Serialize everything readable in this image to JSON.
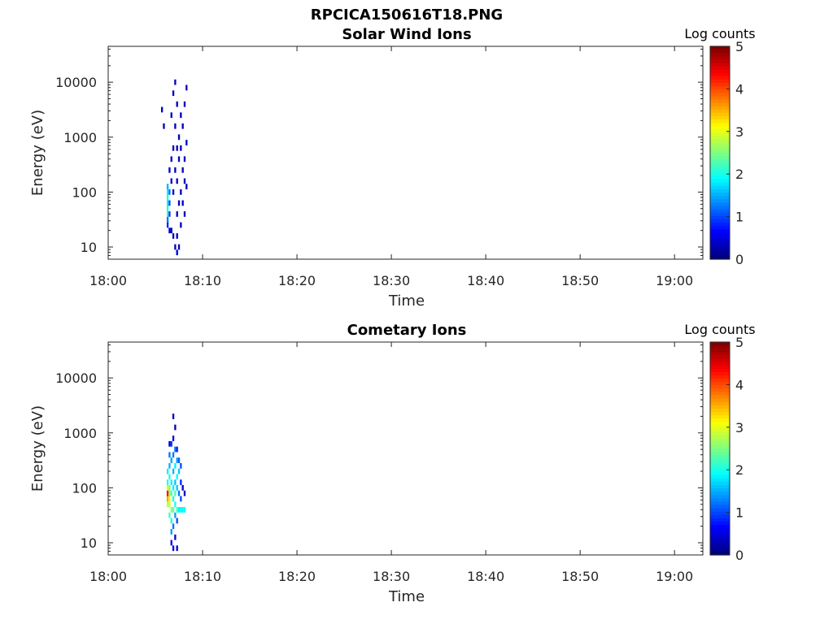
{
  "figure_title": "RPCICA150616T18.PNG",
  "chart_data": [
    {
      "type": "heatmap",
      "title": "Solar Wind Ions",
      "xlabel": "Time",
      "ylabel": "Energy (eV)",
      "x_ticks": [
        "18:00",
        "18:10",
        "18:20",
        "18:30",
        "18:40",
        "18:50",
        "19:00"
      ],
      "x_range_minutes": [
        0,
        63
      ],
      "y_ticks": [
        "10",
        "100",
        "1000",
        "10000"
      ],
      "y_scale": "log",
      "y_range_eV": [
        6,
        45000
      ],
      "colorbar": {
        "label": "Log counts",
        "ticks": [
          "0",
          "1",
          "2",
          "3",
          "4",
          "5"
        ],
        "range": [
          0,
          5
        ],
        "colormap": "jet"
      },
      "cells": [
        {
          "t": 6.2,
          "e": 1.6,
          "c": 2.2
        },
        {
          "t": 6.2,
          "e": 1.7,
          "c": 2.0
        },
        {
          "t": 6.2,
          "e": 1.8,
          "c": 1.8
        },
        {
          "t": 6.2,
          "e": 1.9,
          "c": 2.0
        },
        {
          "t": 6.2,
          "e": 2.0,
          "c": 1.8
        },
        {
          "t": 6.2,
          "e": 2.1,
          "c": 1.5
        },
        {
          "t": 6.2,
          "e": 1.5,
          "c": 1.2
        },
        {
          "t": 6.2,
          "e": 1.4,
          "c": 0.8
        },
        {
          "t": 6.4,
          "e": 2.0,
          "c": 1.2
        },
        {
          "t": 6.4,
          "e": 1.8,
          "c": 1.0
        },
        {
          "t": 6.4,
          "e": 1.6,
          "c": 0.9
        },
        {
          "t": 6.4,
          "e": 2.4,
          "c": 0.4
        },
        {
          "t": 6.4,
          "e": 1.3,
          "c": 0.4
        },
        {
          "t": 6.6,
          "e": 2.2,
          "c": 0.4
        },
        {
          "t": 6.6,
          "e": 2.6,
          "c": 0.4
        },
        {
          "t": 6.6,
          "e": 1.3,
          "c": 0.3
        },
        {
          "t": 6.6,
          "e": 3.4,
          "c": 0.3
        },
        {
          "t": 6.8,
          "e": 2.0,
          "c": 0.4
        },
        {
          "t": 6.8,
          "e": 2.8,
          "c": 0.3
        },
        {
          "t": 6.8,
          "e": 3.8,
          "c": 0.3
        },
        {
          "t": 6.8,
          "e": 1.2,
          "c": 0.3
        },
        {
          "t": 7.0,
          "e": 1.0,
          "c": 0.3
        },
        {
          "t": 7.0,
          "e": 2.4,
          "c": 0.3
        },
        {
          "t": 7.0,
          "e": 3.2,
          "c": 0.3
        },
        {
          "t": 7.0,
          "e": 4.0,
          "c": 0.3
        },
        {
          "t": 7.2,
          "e": 0.9,
          "c": 0.4
        },
        {
          "t": 7.2,
          "e": 1.2,
          "c": 0.3
        },
        {
          "t": 7.2,
          "e": 1.6,
          "c": 0.3
        },
        {
          "t": 7.2,
          "e": 2.2,
          "c": 0.3
        },
        {
          "t": 7.2,
          "e": 2.8,
          "c": 0.3
        },
        {
          "t": 7.2,
          "e": 3.6,
          "c": 0.3
        },
        {
          "t": 7.4,
          "e": 1.0,
          "c": 0.3
        },
        {
          "t": 7.4,
          "e": 1.8,
          "c": 0.3
        },
        {
          "t": 7.4,
          "e": 2.6,
          "c": 0.3
        },
        {
          "t": 7.4,
          "e": 3.0,
          "c": 0.3
        },
        {
          "t": 7.6,
          "e": 1.4,
          "c": 0.3
        },
        {
          "t": 7.6,
          "e": 2.0,
          "c": 0.3
        },
        {
          "t": 7.6,
          "e": 2.8,
          "c": 0.3
        },
        {
          "t": 7.6,
          "e": 3.4,
          "c": 0.3
        },
        {
          "t": 7.8,
          "e": 1.8,
          "c": 0.3
        },
        {
          "t": 7.8,
          "e": 2.4,
          "c": 0.3
        },
        {
          "t": 7.8,
          "e": 3.2,
          "c": 0.3
        },
        {
          "t": 8.0,
          "e": 1.6,
          "c": 0.3
        },
        {
          "t": 8.0,
          "e": 2.2,
          "c": 0.3
        },
        {
          "t": 8.0,
          "e": 2.6,
          "c": 0.3
        },
        {
          "t": 8.0,
          "e": 3.6,
          "c": 0.3
        },
        {
          "t": 8.2,
          "e": 2.1,
          "c": 0.3
        },
        {
          "t": 8.2,
          "e": 2.9,
          "c": 0.3
        },
        {
          "t": 8.2,
          "e": 3.9,
          "c": 0.3
        },
        {
          "t": 5.6,
          "e": 3.5,
          "c": 0.3
        },
        {
          "t": 5.8,
          "e": 3.2,
          "c": 0.3
        }
      ]
    },
    {
      "type": "heatmap",
      "title": "Cometary Ions",
      "xlabel": "Time",
      "ylabel": "Energy (eV)",
      "x_ticks": [
        "18:00",
        "18:10",
        "18:20",
        "18:30",
        "18:40",
        "18:50",
        "19:00"
      ],
      "x_range_minutes": [
        0,
        63
      ],
      "y_ticks": [
        "10",
        "100",
        "1000",
        "10000"
      ],
      "y_scale": "log",
      "y_range_eV": [
        6,
        45000
      ],
      "colorbar": {
        "label": "Log counts",
        "ticks": [
          "0",
          "1",
          "2",
          "3",
          "4",
          "5"
        ],
        "range": [
          0,
          5
        ],
        "colormap": "jet"
      },
      "cells": [
        {
          "t": 6.2,
          "e": 1.8,
          "c": 3.6
        },
        {
          "t": 6.2,
          "e": 1.9,
          "c": 4.4
        },
        {
          "t": 6.2,
          "e": 2.0,
          "c": 3.2
        },
        {
          "t": 6.2,
          "e": 1.7,
          "c": 2.8
        },
        {
          "t": 6.2,
          "e": 2.1,
          "c": 2.0
        },
        {
          "t": 6.2,
          "e": 2.3,
          "c": 1.8
        },
        {
          "t": 6.4,
          "e": 1.7,
          "c": 2.8
        },
        {
          "t": 6.4,
          "e": 1.8,
          "c": 3.0
        },
        {
          "t": 6.4,
          "e": 1.9,
          "c": 2.6
        },
        {
          "t": 6.4,
          "e": 2.0,
          "c": 2.4
        },
        {
          "t": 6.4,
          "e": 2.2,
          "c": 2.0
        },
        {
          "t": 6.4,
          "e": 2.4,
          "c": 1.5
        },
        {
          "t": 6.4,
          "e": 2.6,
          "c": 1.2
        },
        {
          "t": 6.4,
          "e": 1.5,
          "c": 2.2
        },
        {
          "t": 6.6,
          "e": 1.6,
          "c": 2.5
        },
        {
          "t": 6.6,
          "e": 1.4,
          "c": 2.0
        },
        {
          "t": 6.6,
          "e": 1.9,
          "c": 2.3
        },
        {
          "t": 6.6,
          "e": 2.1,
          "c": 1.8
        },
        {
          "t": 6.6,
          "e": 2.5,
          "c": 1.4
        },
        {
          "t": 6.6,
          "e": 2.8,
          "c": 0.9
        },
        {
          "t": 6.6,
          "e": 1.2,
          "c": 1.4
        },
        {
          "t": 6.6,
          "e": 1.0,
          "c": 0.6
        },
        {
          "t": 6.8,
          "e": 1.6,
          "c": 2.4
        },
        {
          "t": 6.8,
          "e": 1.8,
          "c": 2.0
        },
        {
          "t": 6.8,
          "e": 2.0,
          "c": 1.8
        },
        {
          "t": 6.8,
          "e": 2.3,
          "c": 1.5
        },
        {
          "t": 6.8,
          "e": 2.6,
          "c": 1.2
        },
        {
          "t": 6.8,
          "e": 2.9,
          "c": 0.6
        },
        {
          "t": 6.8,
          "e": 1.3,
          "c": 1.2
        },
        {
          "t": 6.8,
          "e": 0.9,
          "c": 0.4
        },
        {
          "t": 7.0,
          "e": 1.7,
          "c": 2.0
        },
        {
          "t": 7.0,
          "e": 1.9,
          "c": 2.2
        },
        {
          "t": 7.0,
          "e": 2.1,
          "c": 1.6
        },
        {
          "t": 7.0,
          "e": 2.4,
          "c": 1.8
        },
        {
          "t": 7.0,
          "e": 2.7,
          "c": 1.2
        },
        {
          "t": 7.0,
          "e": 1.5,
          "c": 1.4
        },
        {
          "t": 7.0,
          "e": 1.1,
          "c": 0.5
        },
        {
          "t": 7.2,
          "e": 1.6,
          "c": 2.2
        },
        {
          "t": 7.2,
          "e": 2.0,
          "c": 1.6
        },
        {
          "t": 7.2,
          "e": 2.2,
          "c": 1.9
        },
        {
          "t": 7.2,
          "e": 2.5,
          "c": 1.4
        },
        {
          "t": 7.2,
          "e": 2.7,
          "c": 0.8
        },
        {
          "t": 7.2,
          "e": 1.4,
          "c": 1.0
        },
        {
          "t": 7.2,
          "e": 0.9,
          "c": 0.4
        },
        {
          "t": 7.4,
          "e": 1.6,
          "c": 1.8
        },
        {
          "t": 7.4,
          "e": 1.9,
          "c": 1.2
        },
        {
          "t": 7.4,
          "e": 2.3,
          "c": 1.6
        },
        {
          "t": 7.4,
          "e": 2.5,
          "c": 1.1
        },
        {
          "t": 7.6,
          "e": 1.6,
          "c": 1.9
        },
        {
          "t": 7.6,
          "e": 1.8,
          "c": 1.0
        },
        {
          "t": 7.6,
          "e": 2.1,
          "c": 0.8
        },
        {
          "t": 7.6,
          "e": 2.4,
          "c": 1.0
        },
        {
          "t": 7.8,
          "e": 1.6,
          "c": 1.9
        },
        {
          "t": 7.8,
          "e": 2.0,
          "c": 0.4
        },
        {
          "t": 8.0,
          "e": 1.6,
          "c": 1.9
        },
        {
          "t": 8.0,
          "e": 1.9,
          "c": 0.3
        },
        {
          "t": 6.4,
          "e": 2.8,
          "c": 0.4
        },
        {
          "t": 7.0,
          "e": 3.1,
          "c": 0.3
        },
        {
          "t": 6.8,
          "e": 3.3,
          "c": 0.3
        }
      ]
    }
  ]
}
